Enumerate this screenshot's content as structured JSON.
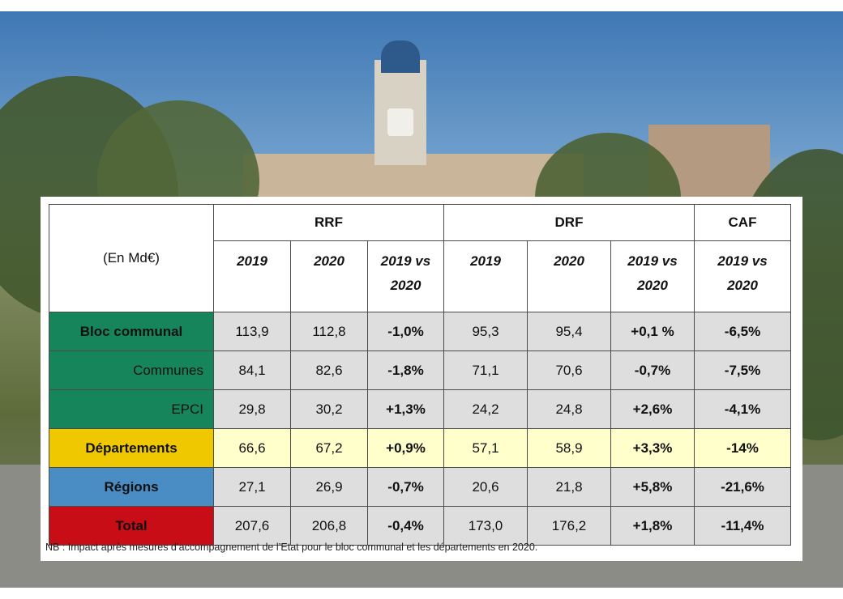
{
  "table": {
    "unit_label": "(En Md€)",
    "groups": [
      "RRF",
      "DRF",
      "CAF"
    ],
    "year_headers": {
      "rrf": [
        "2019",
        "2020",
        "2019 vs 2020"
      ],
      "drf": [
        "2019",
        "2020",
        "2019 vs 2020"
      ],
      "caf": [
        "2019 vs 2020"
      ]
    },
    "rows": [
      {
        "label": "Bloc communal",
        "cells": [
          "113,9",
          "112,8",
          "-1,0%",
          "95,3",
          "95,4",
          "+0,1 %",
          "-6,5%"
        ]
      },
      {
        "label": "Communes",
        "cells": [
          "84,1",
          "82,6",
          "-1,8%",
          "71,1",
          "70,6",
          "-0,7%",
          "-7,5%"
        ]
      },
      {
        "label": "EPCI",
        "cells": [
          "29,8",
          "30,2",
          "+1,3%",
          "24,2",
          "24,8",
          "+2,6%",
          "-4,1%"
        ]
      },
      {
        "label": "Départements",
        "cells": [
          "66,6",
          "67,2",
          "+0,9%",
          "57,1",
          "58,9",
          "+3,3%",
          "-14%"
        ]
      },
      {
        "label": "Régions",
        "cells": [
          "27,1",
          "26,9",
          "-0,7%",
          "20,6",
          "21,8",
          "+5,8%",
          "-21,6%"
        ]
      },
      {
        "label": "Total",
        "cells": [
          "207,6",
          "206,8",
          "-0,4%",
          "173,0",
          "176,2",
          "+1,8%",
          "-11,4%"
        ]
      }
    ]
  },
  "note": "NB : Impact après mesures d’accompagnement de l’Etat pour le bloc communal et les départements en 2020.",
  "colors": {
    "bloc_communal": "#17855c",
    "departements": "#f0c800",
    "regions": "#4a8cc4",
    "total": "#c80d16"
  }
}
